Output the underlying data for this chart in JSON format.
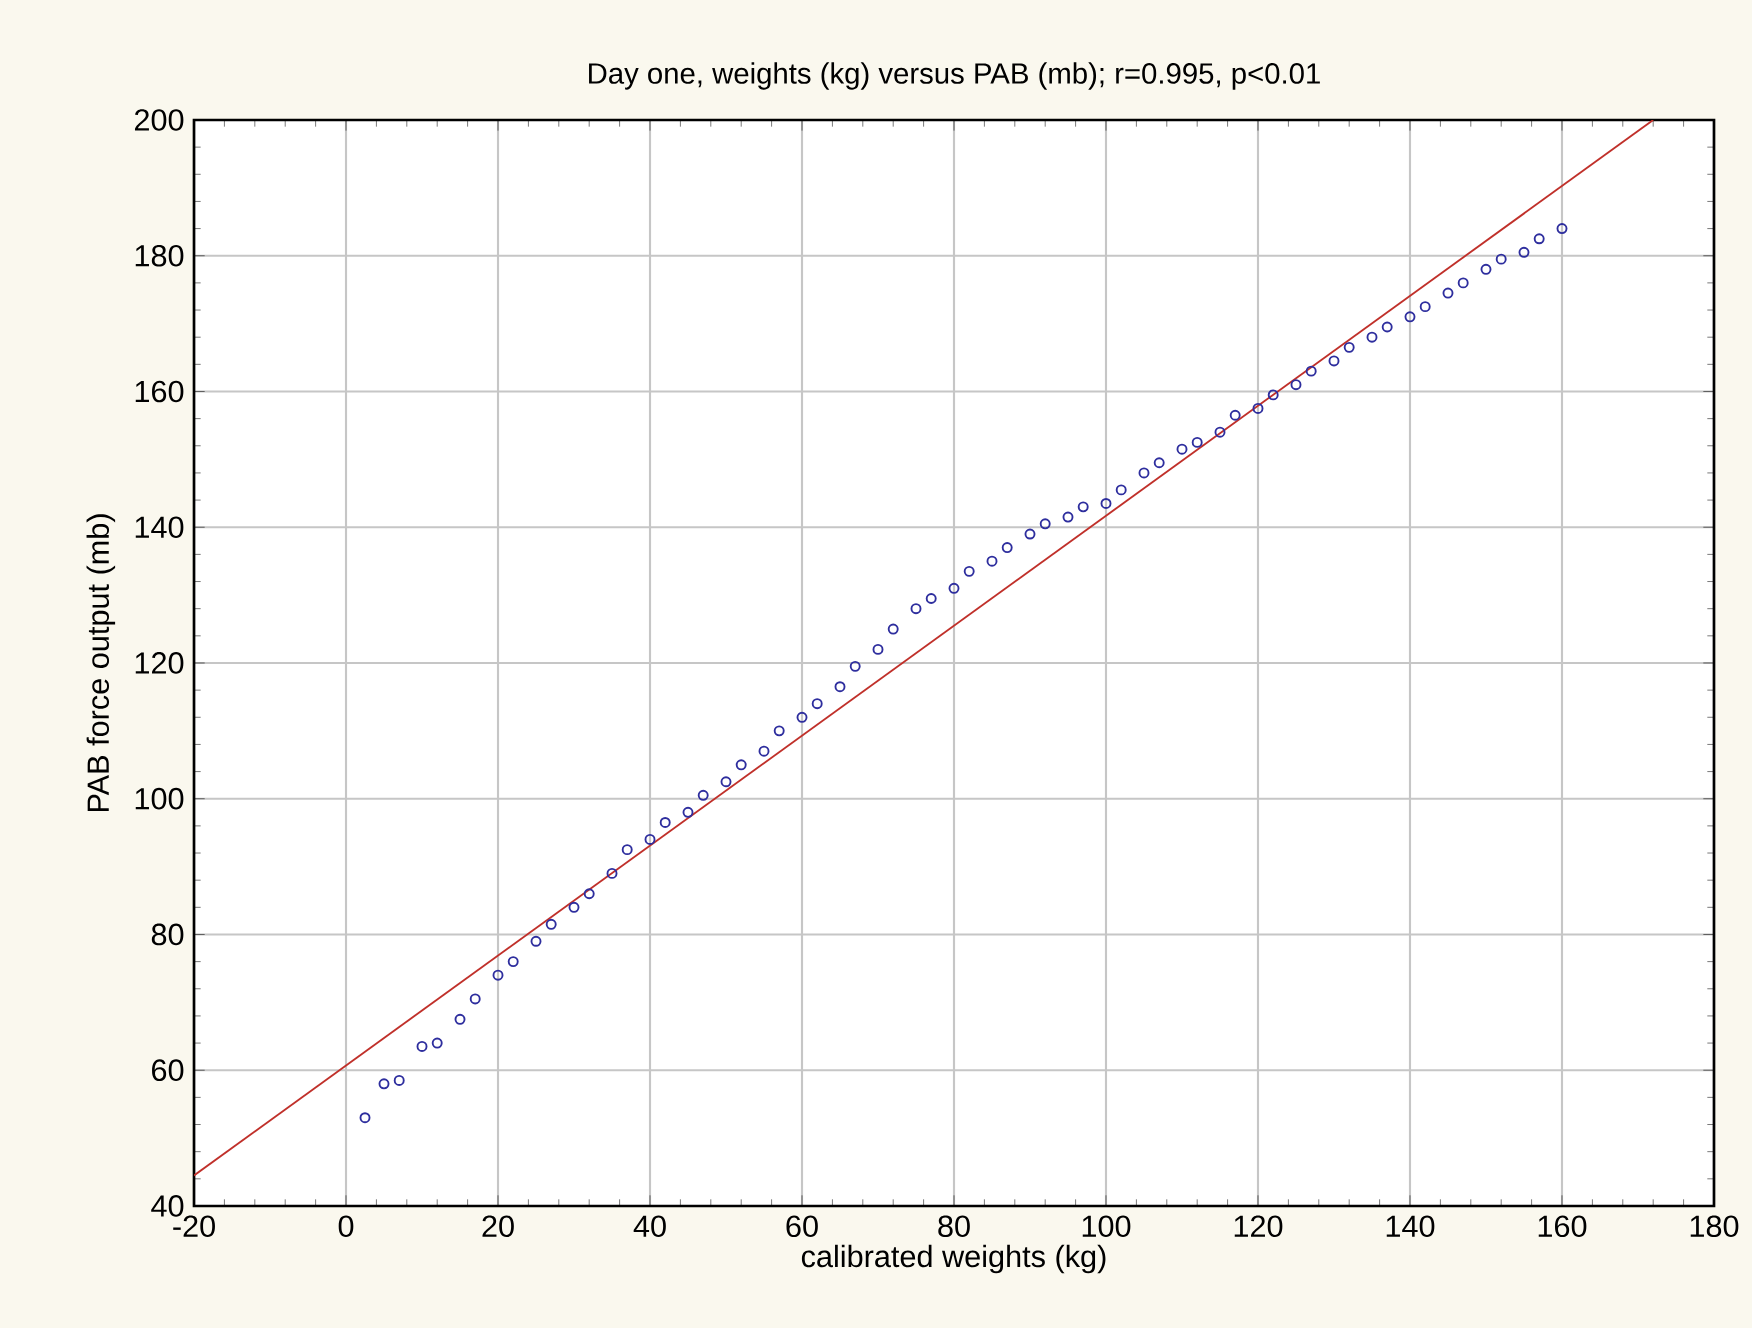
{
  "chart_data": {
    "type": "scatter",
    "title": "Day one, weights (kg) versus PAB (mb); r=0.995, p<0.01",
    "xlabel": "calibrated weights (kg)",
    "ylabel": "PAB force output (mb)",
    "xlim": [
      -20,
      180
    ],
    "ylim": [
      40,
      200
    ],
    "xticks": [
      -20,
      0,
      20,
      40,
      60,
      80,
      100,
      120,
      140,
      160,
      180
    ],
    "yticks": [
      40,
      60,
      80,
      100,
      120,
      140,
      160,
      180,
      200
    ],
    "grid": true,
    "series": [
      {
        "marker": "circle",
        "color": "#2e2e9e",
        "x": [
          2.5,
          5,
          7,
          10,
          12,
          15,
          17,
          20,
          22,
          25,
          27,
          30,
          32,
          35,
          37,
          40,
          42,
          45,
          47,
          50,
          52,
          55,
          57,
          60,
          62,
          65,
          67,
          70,
          72,
          75,
          77,
          80,
          82,
          85,
          87,
          90,
          92,
          95,
          97,
          100,
          102,
          105,
          107,
          110,
          112,
          115,
          117,
          120,
          122,
          125,
          127,
          130,
          132,
          135,
          137,
          140,
          142,
          145,
          147,
          150,
          152,
          155,
          157,
          160
        ],
        "values": [
          53,
          58,
          58.5,
          63.5,
          64,
          67.5,
          70.5,
          74,
          76,
          79,
          81.5,
          84,
          86,
          89,
          92.5,
          94,
          96.5,
          98,
          100.5,
          102.5,
          105,
          107,
          110,
          112,
          114,
          116.5,
          119.5,
          122,
          125,
          128,
          129.5,
          131,
          133.5,
          135,
          137,
          139,
          140.5,
          141.5,
          143,
          143.5,
          145.5,
          148,
          149.5,
          151.5,
          152.5,
          154,
          156.5,
          157.5,
          159.5,
          161,
          163,
          164.5,
          166.5,
          168,
          169.5,
          171,
          172.5,
          174.5,
          176,
          178,
          179.5,
          180.5,
          182.5,
          184
        ]
      },
      {
        "type": "line",
        "marker": "none",
        "color": "#c0302a",
        "x": [
          -20,
          172
        ],
        "values": [
          44.5,
          200
        ]
      }
    ]
  }
}
